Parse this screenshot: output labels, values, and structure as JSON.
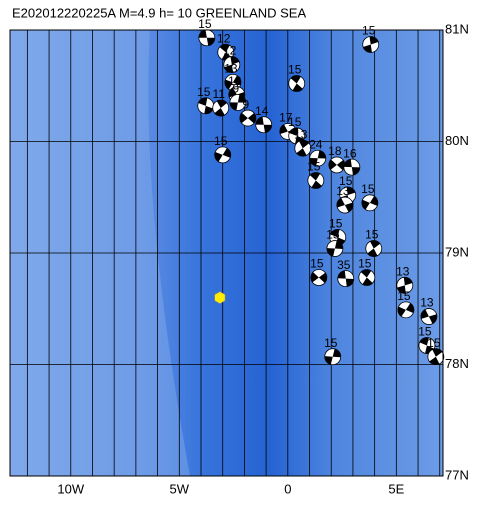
{
  "map": {
    "title": "E202012220225A M=4.9 h= 10 GREENLAND SEA",
    "xlim": [
      -12.8,
      7.15
    ],
    "ylim": [
      77,
      81
    ],
    "xticks": [
      {
        "value": -10,
        "label": "10W"
      },
      {
        "value": -5,
        "label": "5W"
      },
      {
        "value": 0,
        "label": "0"
      },
      {
        "value": 5,
        "label": "5E"
      }
    ],
    "yticks": [
      {
        "value": 81,
        "label": "81N"
      },
      {
        "value": 80,
        "label": "80N"
      },
      {
        "value": 79,
        "label": "79N"
      },
      {
        "value": 78,
        "label": "78N"
      },
      {
        "value": 77,
        "label": "77N"
      }
    ],
    "meridians": [
      -12,
      -11,
      -10,
      -9,
      -8,
      -7,
      -6,
      -5,
      -4,
      -3,
      -2,
      -1,
      0,
      1,
      2,
      3,
      4,
      5,
      6,
      7
    ],
    "epicenter": {
      "lon": -3.13,
      "lat": 78.6
    },
    "events": [
      {
        "label": "15",
        "lon": -3.73,
        "lat": 80.93
      },
      {
        "label": "12",
        "lon": -2.86,
        "lat": 80.8
      },
      {
        "label": "12",
        "lon": -2.58,
        "lat": 80.69
      },
      {
        "label": "13",
        "lon": -2.53,
        "lat": 80.53
      },
      {
        "label": "13",
        "lon": -2.35,
        "lat": 80.42
      },
      {
        "label": "15",
        "lon": -3.78,
        "lat": 80.32
      },
      {
        "label": "11",
        "lon": -3.09,
        "lat": 80.3
      },
      {
        "label": "9",
        "lon": -2.3,
        "lat": 80.35
      },
      {
        "label": "9",
        "lon": -1.84,
        "lat": 80.21
      },
      {
        "label": "14",
        "lon": -1.11,
        "lat": 80.15
      },
      {
        "label": "15",
        "lon": 0.41,
        "lat": 80.52
      },
      {
        "label": "15",
        "lon": 3.82,
        "lat": 80.87
      },
      {
        "label": "15",
        "lon": -3.0,
        "lat": 79.88
      },
      {
        "label": "17",
        "lon": 0,
        "lat": 80.09
      },
      {
        "label": "15",
        "lon": 0.41,
        "lat": 80.05
      },
      {
        "label": "13",
        "lon": 0.69,
        "lat": 79.94
      },
      {
        "label": "24",
        "lon": 1.38,
        "lat": 79.85
      },
      {
        "label": "18",
        "lon": 2.26,
        "lat": 79.79
      },
      {
        "label": "16",
        "lon": 2.95,
        "lat": 79.77
      },
      {
        "label": "15",
        "lon": 1.29,
        "lat": 79.65
      },
      {
        "label": "15",
        "lon": 2.76,
        "lat": 79.52
      },
      {
        "label": "15",
        "lon": 3.78,
        "lat": 79.45
      },
      {
        "label": "13",
        "lon": 2.63,
        "lat": 79.43
      },
      {
        "label": "15",
        "lon": 2.3,
        "lat": 79.14
      },
      {
        "label": "15",
        "lon": 3.96,
        "lat": 79.04
      },
      {
        "label": "15",
        "lon": 2.17,
        "lat": 79.04
      },
      {
        "label": "15",
        "lon": 1.43,
        "lat": 78.78
      },
      {
        "label": "35",
        "lon": 2.67,
        "lat": 78.77
      },
      {
        "label": "15",
        "lon": 3.64,
        "lat": 78.78
      },
      {
        "label": "13",
        "lon": 5.39,
        "lat": 78.71
      },
      {
        "label": "15",
        "lon": 5.44,
        "lat": 78.49
      },
      {
        "label": "13",
        "lon": 6.5,
        "lat": 78.43
      },
      {
        "label": "15",
        "lon": 6.41,
        "lat": 78.17
      },
      {
        "label": "15",
        "lon": 6.82,
        "lat": 78.07
      },
      {
        "label": "15",
        "lon": 2.07,
        "lat": 78.07
      }
    ]
  }
}
